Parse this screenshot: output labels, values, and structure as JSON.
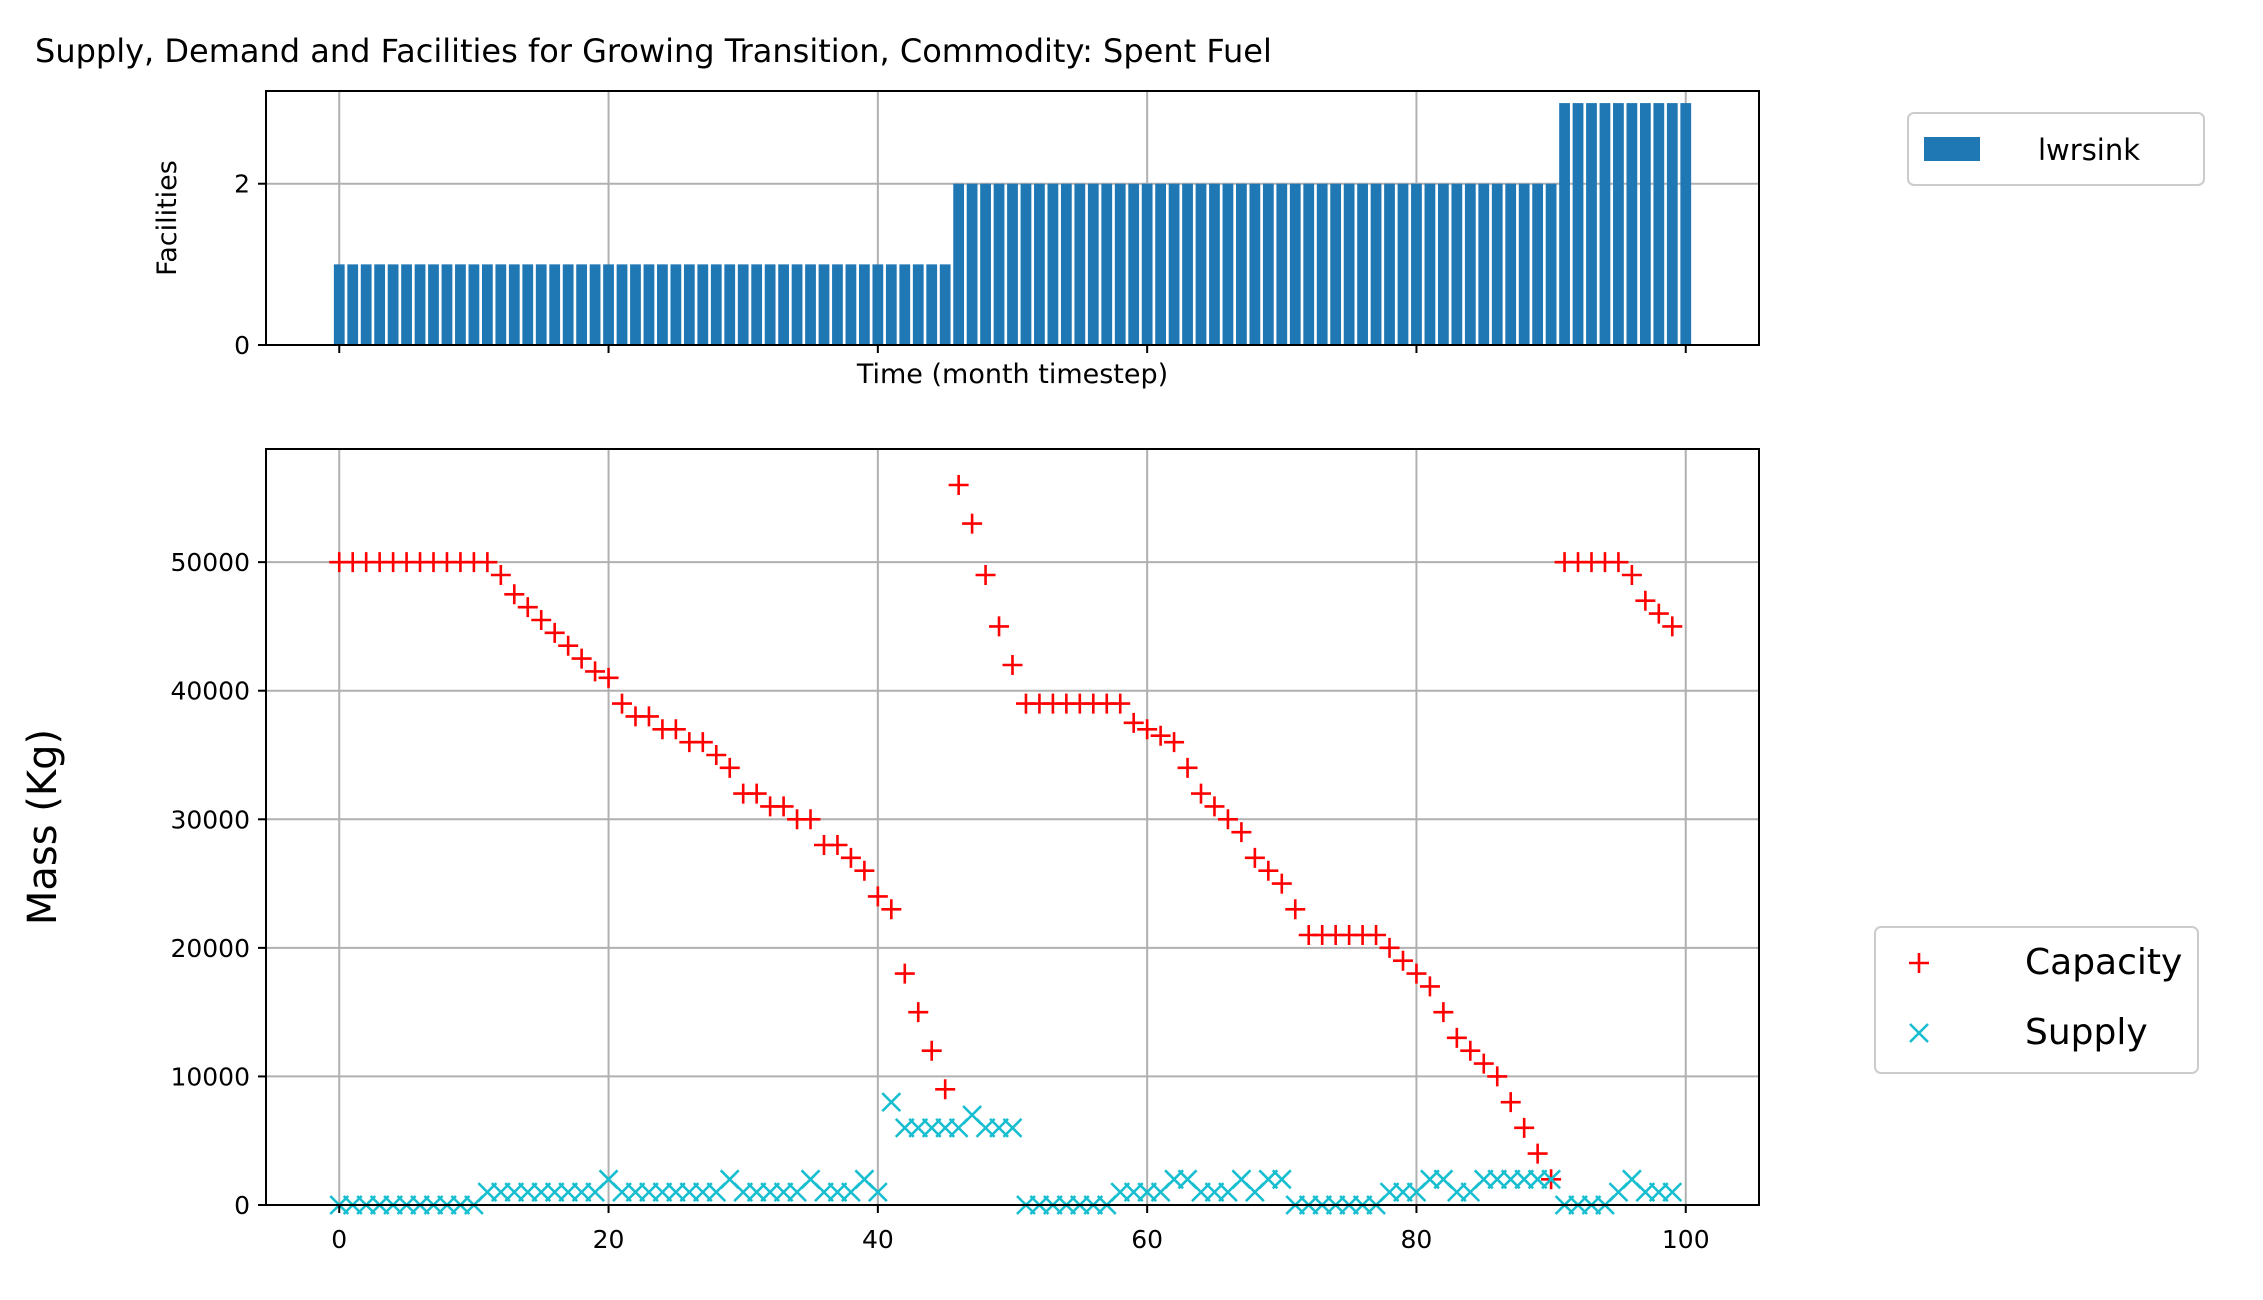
{
  "chart_data": [
    {
      "type": "bar",
      "title": "Supply, Demand and Facilities for Growing Transition, Commodity: Spent Fuel",
      "xlabel": "Time (month timestep)",
      "ylabel": "Facilities",
      "x": [
        0,
        1,
        2,
        3,
        4,
        5,
        6,
        7,
        8,
        9,
        10,
        11,
        12,
        13,
        14,
        15,
        16,
        17,
        18,
        19,
        20,
        21,
        22,
        23,
        24,
        25,
        26,
        27,
        28,
        29,
        30,
        31,
        32,
        33,
        34,
        35,
        36,
        37,
        38,
        39,
        40,
        41,
        42,
        43,
        44,
        45,
        46,
        47,
        48,
        49,
        50,
        51,
        52,
        53,
        54,
        55,
        56,
        57,
        58,
        59,
        60,
        61,
        62,
        63,
        64,
        65,
        66,
        67,
        68,
        69,
        70,
        71,
        72,
        73,
        74,
        75,
        76,
        77,
        78,
        79,
        80,
        81,
        82,
        83,
        84,
        85,
        86,
        87,
        88,
        89,
        90,
        91,
        92,
        93,
        94,
        95,
        96,
        97,
        98,
        99,
        100
      ],
      "series": [
        {
          "name": "lwrsink",
          "color": "#1f77b4",
          "values": [
            1,
            1,
            1,
            1,
            1,
            1,
            1,
            1,
            1,
            1,
            1,
            1,
            1,
            1,
            1,
            1,
            1,
            1,
            1,
            1,
            1,
            1,
            1,
            1,
            1,
            1,
            1,
            1,
            1,
            1,
            1,
            1,
            1,
            1,
            1,
            1,
            1,
            1,
            1,
            1,
            1,
            1,
            1,
            1,
            1,
            1,
            2,
            2,
            2,
            2,
            2,
            2,
            2,
            2,
            2,
            2,
            2,
            2,
            2,
            2,
            2,
            2,
            2,
            2,
            2,
            2,
            2,
            2,
            2,
            2,
            2,
            2,
            2,
            2,
            2,
            2,
            2,
            2,
            2,
            2,
            2,
            2,
            2,
            2,
            2,
            2,
            2,
            2,
            2,
            2,
            2,
            3,
            3,
            3,
            3,
            3,
            3,
            3,
            3,
            3,
            3
          ]
        }
      ],
      "xlim": [
        -5.44,
        105.44
      ],
      "xticks": [
        0,
        20,
        40,
        60,
        80,
        100
      ],
      "ylim": [
        0,
        3.15
      ],
      "yticks": [
        0,
        2
      ],
      "grid": true,
      "legend": "upper right"
    },
    {
      "type": "scatter",
      "ylabel": "Mass (Kg)",
      "x": [
        0,
        1,
        2,
        3,
        4,
        5,
        6,
        7,
        8,
        9,
        10,
        11,
        12,
        13,
        14,
        15,
        16,
        17,
        18,
        19,
        20,
        21,
        22,
        23,
        24,
        25,
        26,
        27,
        28,
        29,
        30,
        31,
        32,
        33,
        34,
        35,
        36,
        37,
        38,
        39,
        40,
        41,
        42,
        43,
        44,
        45,
        46,
        47,
        48,
        49,
        50,
        51,
        52,
        53,
        54,
        55,
        56,
        57,
        58,
        59,
        60,
        61,
        62,
        63,
        64,
        65,
        66,
        67,
        68,
        69,
        70,
        71,
        72,
        73,
        74,
        75,
        76,
        77,
        78,
        79,
        80,
        81,
        82,
        83,
        84,
        85,
        86,
        87,
        88,
        89,
        90,
        91,
        92,
        93,
        94,
        95,
        96,
        97,
        98,
        99
      ],
      "series": [
        {
          "name": "Capacity",
          "color": "#ff0000",
          "marker": "+",
          "values": [
            50000,
            50000,
            50000,
            50000,
            50000,
            50000,
            50000,
            50000,
            50000,
            50000,
            50000,
            50000,
            49000,
            47500,
            46500,
            45500,
            44500,
            43500,
            42500,
            41500,
            41000,
            39000,
            38000,
            38000,
            37000,
            37000,
            36000,
            36000,
            35000,
            34000,
            32000,
            32000,
            31000,
            31000,
            30000,
            30000,
            28000,
            28000,
            27000,
            26000,
            24000,
            23000,
            18000,
            15000,
            12000,
            9000,
            56000,
            53000,
            49000,
            45000,
            42000,
            39000,
            39000,
            39000,
            39000,
            39000,
            39000,
            39000,
            39000,
            37500,
            37000,
            36500,
            36000,
            34000,
            32000,
            31000,
            30000,
            29000,
            27000,
            26000,
            25000,
            23000,
            21000,
            21000,
            21000,
            21000,
            21000,
            21000,
            20000,
            19000,
            18000,
            17000,
            15000,
            13000,
            12000,
            11000,
            10000,
            8000,
            6000,
            4000,
            2000,
            50000,
            50000,
            50000,
            50000,
            50000,
            49000,
            47000,
            46000,
            45000
          ]
        },
        {
          "name": "Supply",
          "color": "#17becf",
          "marker": "x",
          "values": [
            0,
            0,
            0,
            0,
            0,
            0,
            0,
            0,
            0,
            0,
            0,
            1000,
            1000,
            1000,
            1000,
            1000,
            1000,
            1000,
            1000,
            1000,
            2000,
            1000,
            1000,
            1000,
            1000,
            1000,
            1000,
            1000,
            1000,
            2000,
            1000,
            1000,
            1000,
            1000,
            1000,
            2000,
            1000,
            1000,
            1000,
            2000,
            1000,
            8000,
            6000,
            6000,
            6000,
            6000,
            6000,
            7000,
            6000,
            6000,
            6000,
            0,
            0,
            0,
            0,
            0,
            0,
            0,
            1000,
            1000,
            1000,
            1000,
            2000,
            2000,
            1000,
            1000,
            1000,
            2000,
            1000,
            2000,
            2000,
            0,
            0,
            0,
            0,
            0,
            0,
            0,
            1000,
            1000,
            1000,
            2000,
            2000,
            1000,
            1000,
            2000,
            2000,
            2000,
            2000,
            2000,
            2000,
            0,
            0,
            0,
            0,
            1000,
            2000,
            1000,
            1000,
            1000
          ]
        }
      ],
      "xlim": [
        -5.44,
        105.44
      ],
      "xticks": [
        0,
        20,
        40,
        60,
        80,
        100
      ],
      "ylim": [
        0,
        58800
      ],
      "yticks": [
        0,
        10000,
        20000,
        30000,
        40000,
        50000
      ],
      "grid": true,
      "legend": "lower right"
    }
  ]
}
